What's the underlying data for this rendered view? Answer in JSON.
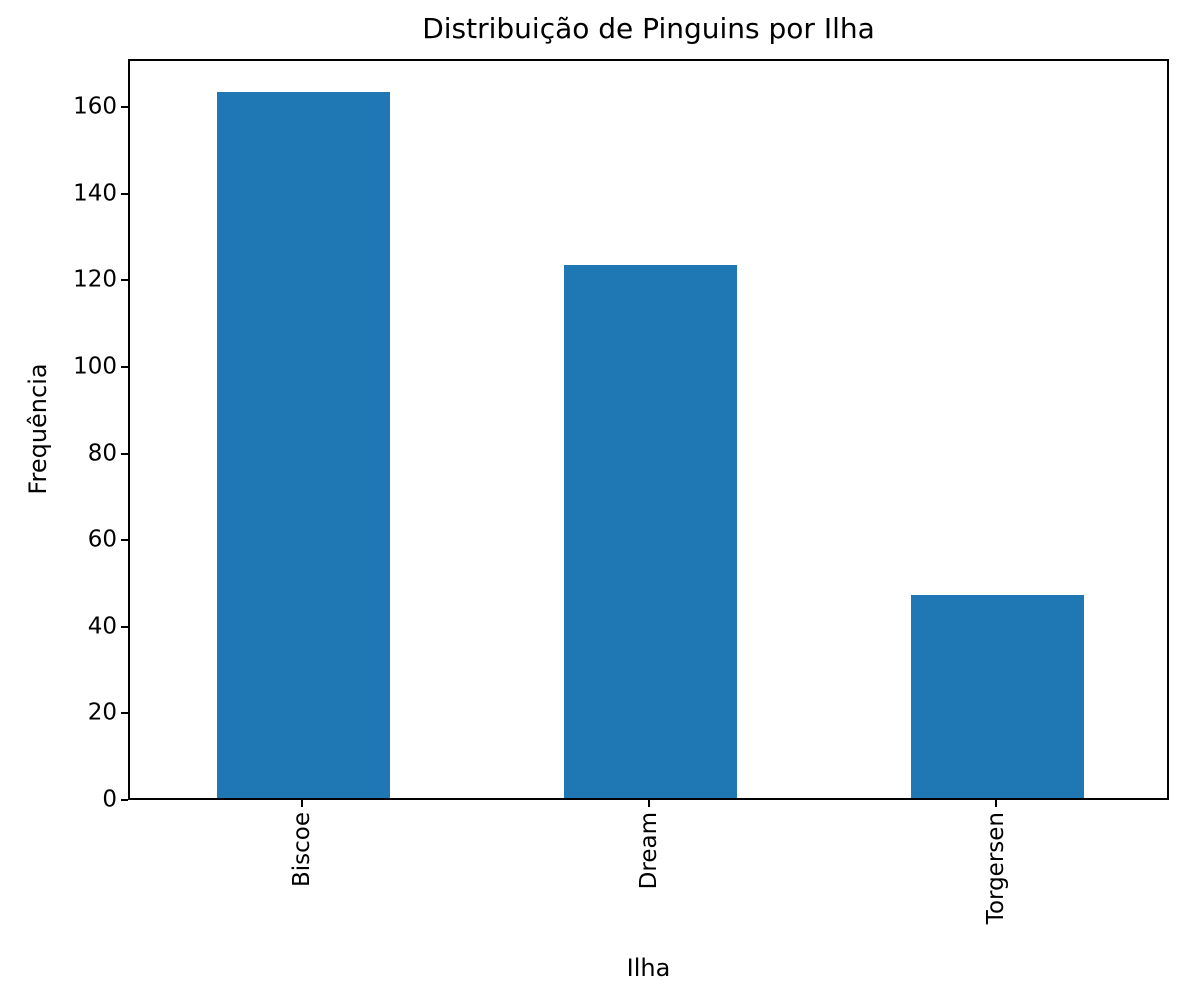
{
  "chart_data": {
    "type": "bar",
    "title": "Distribuição de Pinguins por Ilha",
    "categories": [
      "Biscoe",
      "Dream",
      "Torgersen"
    ],
    "values": [
      163,
      123,
      47
    ],
    "xlabel": "Ilha",
    "ylabel": "Frequência",
    "ylim": [
      0,
      171.15
    ],
    "yticks": [
      0,
      20,
      40,
      60,
      80,
      100,
      120,
      140,
      160
    ],
    "bar_color": "#1f77b4",
    "bar_width_fraction": 0.5,
    "x_tick_rotation_deg": 90,
    "grid": false,
    "legend": false
  }
}
